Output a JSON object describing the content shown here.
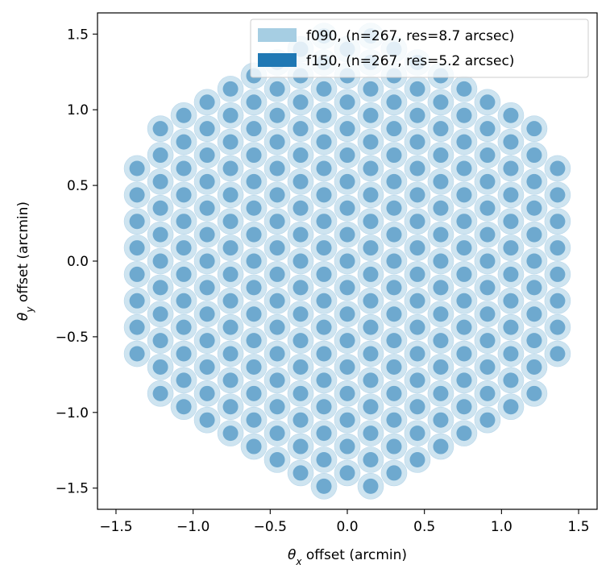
{
  "chart_data": {
    "type": "scatter",
    "xlabel_sym": "θ",
    "xlabel_sub": "x",
    "xlabel_rest": " offset (arcmin)",
    "ylabel_sym": "θ",
    "ylabel_sub": "y",
    "ylabel_rest": " offset (arcmin)",
    "xlim": [
      -1.62,
      1.62
    ],
    "ylim": [
      -1.64,
      1.64
    ],
    "xticks": [
      -1.5,
      -1.0,
      -0.5,
      0.0,
      0.5,
      1.0,
      1.5
    ],
    "xtick_labels": [
      "−1.5",
      "−1.0",
      "−0.5",
      "0.0",
      "0.5",
      "1.0",
      "1.5"
    ],
    "yticks": [
      -1.5,
      -1.0,
      -0.5,
      0.0,
      0.5,
      1.0,
      1.5
    ],
    "ytick_labels": [
      "−1.5",
      "−1.0",
      "−0.5",
      "0.0",
      "0.5",
      "1.0",
      "1.5"
    ],
    "grid": false,
    "legend_position": "upper-right",
    "beam_layout": {
      "pattern": "hexagonal",
      "column_spacing": 0.1515,
      "row_spacing": 0.175,
      "aperture_radius": 1.5
    },
    "series": [
      {
        "name": "f090, (n=267, res=8.7 arcsec)",
        "color": "#a6cee3",
        "resolution_arcsec": 8.7,
        "fill_opacity": 0.55
      },
      {
        "name": "f150, (n=267, res=5.2 arcsec)",
        "color": "#1f78b4",
        "resolution_arcsec": 5.2,
        "fill_opacity": 0.55
      }
    ]
  }
}
